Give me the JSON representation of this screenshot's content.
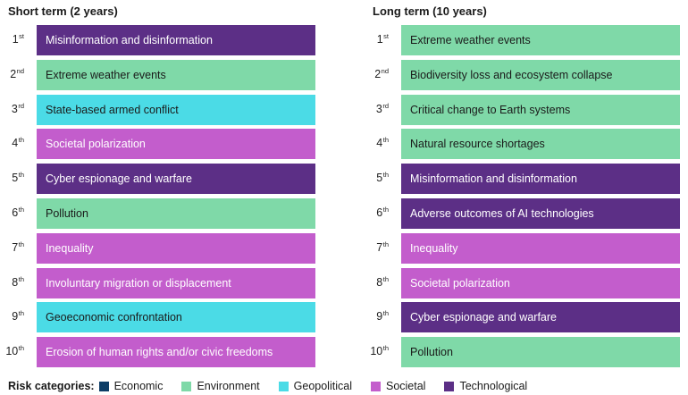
{
  "short_term": {
    "title": "Short term (2 years)",
    "rows": [
      {
        "rank": "1",
        "suffix": "st",
        "label": "Misinformation and disinformation",
        "category": "Technological"
      },
      {
        "rank": "2",
        "suffix": "nd",
        "label": "Extreme weather events",
        "category": "Environment"
      },
      {
        "rank": "3",
        "suffix": "rd",
        "label": "State-based armed conflict",
        "category": "Geopolitical"
      },
      {
        "rank": "4",
        "suffix": "th",
        "label": "Societal polarization",
        "category": "Societal"
      },
      {
        "rank": "5",
        "suffix": "th",
        "label": "Cyber espionage and warfare",
        "category": "Technological"
      },
      {
        "rank": "6",
        "suffix": "th",
        "label": "Pollution",
        "category": "Environment"
      },
      {
        "rank": "7",
        "suffix": "th",
        "label": "Inequality",
        "category": "Societal"
      },
      {
        "rank": "8",
        "suffix": "th",
        "label": "Involuntary migration or displacement",
        "category": "Societal"
      },
      {
        "rank": "9",
        "suffix": "th",
        "label": "Geoeconomic confrontation",
        "category": "Geopolitical"
      },
      {
        "rank": "10",
        "suffix": "th",
        "label": "Erosion of human rights and/or civic freedoms",
        "category": "Societal"
      }
    ]
  },
  "long_term": {
    "title": "Long term (10 years)",
    "rows": [
      {
        "rank": "1",
        "suffix": "st",
        "label": "Extreme weather events",
        "category": "Environment"
      },
      {
        "rank": "2",
        "suffix": "nd",
        "label": "Biodiversity loss and ecosystem collapse",
        "category": "Environment"
      },
      {
        "rank": "3",
        "suffix": "rd",
        "label": "Critical change to Earth systems",
        "category": "Environment"
      },
      {
        "rank": "4",
        "suffix": "th",
        "label": "Natural resource shortages",
        "category": "Environment"
      },
      {
        "rank": "5",
        "suffix": "th",
        "label": "Misinformation and disinformation",
        "category": "Technological"
      },
      {
        "rank": "6",
        "suffix": "th",
        "label": "Adverse outcomes of AI technologies",
        "category": "Technological"
      },
      {
        "rank": "7",
        "suffix": "th",
        "label": "Inequality",
        "category": "Societal"
      },
      {
        "rank": "8",
        "suffix": "th",
        "label": "Societal polarization",
        "category": "Societal"
      },
      {
        "rank": "9",
        "suffix": "th",
        "label": "Cyber espionage and warfare",
        "category": "Technological"
      },
      {
        "rank": "10",
        "suffix": "th",
        "label": "Pollution",
        "category": "Environment"
      }
    ]
  },
  "legend": {
    "title": "Risk categories:",
    "items": [
      {
        "name": "Economic",
        "color": "#0d3d66"
      },
      {
        "name": "Environment",
        "color": "#7fd9a8"
      },
      {
        "name": "Geopolitical",
        "color": "#4bdbe6"
      },
      {
        "name": "Societal",
        "color": "#c35dcc"
      },
      {
        "name": "Technological",
        "color": "#5c2f86"
      }
    ]
  }
}
